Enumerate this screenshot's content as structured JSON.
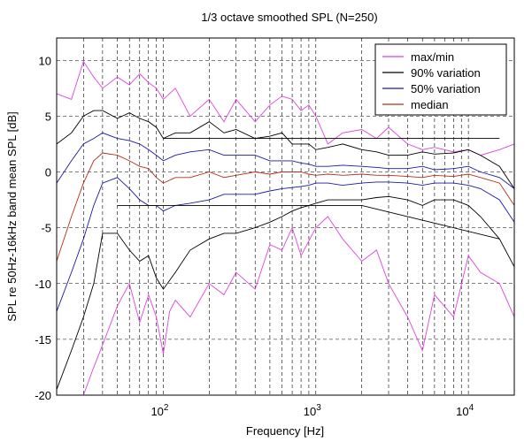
{
  "chart_data": {
    "type": "line",
    "title": "1/3 octave smoothed SPL (N=250)",
    "xlabel": "Frequency [Hz]",
    "ylabel": "SPL re 50Hz-16kHz band mean SPL [dB]",
    "x_scale": "log",
    "xlim": [
      20,
      20000
    ],
    "ylim": [
      -20,
      12
    ],
    "x_ticks": [
      {
        "value": 100,
        "base": "10",
        "exp": "2"
      },
      {
        "value": 1000,
        "base": "10",
        "exp": "3"
      },
      {
        "value": 10000,
        "base": "10",
        "exp": "4"
      }
    ],
    "y_ticks": [
      10,
      5,
      0,
      -5,
      -10,
      -15,
      -20
    ],
    "grid": true,
    "legend": {
      "position": "top-right",
      "entries": [
        {
          "name": "max/min",
          "color": "#dd44dd"
        },
        {
          "name": "90% variation",
          "color": "#000000"
        },
        {
          "name": "50% variation",
          "color": "#1a1aa6"
        },
        {
          "name": "median",
          "color": "#b0301c"
        }
      ]
    },
    "series": [
      {
        "name": "max/min",
        "color": "#dd44dd",
        "x": [
          20,
          25,
          30,
          35,
          40,
          50,
          60,
          70,
          80,
          90,
          100,
          120,
          150,
          200,
          250,
          300,
          400,
          500,
          600,
          700,
          800,
          900,
          1000,
          1200,
          1500,
          2000,
          2500,
          3000,
          4000,
          5000,
          6000,
          8000,
          10000,
          12000,
          16000,
          20000
        ],
        "y": [
          7,
          6.5,
          9.9,
          8.5,
          7.5,
          8.5,
          7.8,
          8.8,
          8.0,
          7.5,
          6.5,
          7.5,
          5.0,
          6.5,
          4.5,
          6.5,
          4.5,
          6.0,
          6.8,
          6.5,
          5.5,
          6.0,
          5.0,
          2.5,
          3.5,
          3.8,
          3.0,
          4.0,
          2.5,
          2.0,
          2.2,
          1.8,
          2.0,
          1.5,
          2.0,
          2.5
        ]
      },
      {
        "name": "max/min",
        "color": "#dd44dd",
        "x": [
          30,
          35,
          40,
          50,
          60,
          70,
          80,
          90,
          100,
          110,
          120,
          150,
          200,
          250,
          300,
          400,
          500,
          600,
          700,
          800,
          1000,
          1200,
          1500,
          2000,
          2500,
          3000,
          4000,
          5000,
          6000,
          8000,
          10000,
          12000,
          16000,
          20000
        ],
        "y": [
          -20,
          -17.5,
          -15.5,
          -12.0,
          -10.0,
          -13.5,
          -11.0,
          -13.0,
          -16.3,
          -12.5,
          -11.5,
          -13.0,
          -10.0,
          -11.0,
          -9.0,
          -10.5,
          -6.5,
          -7.0,
          -5.0,
          -7.5,
          -5.0,
          -4.0,
          -6.0,
          -8.0,
          -7.0,
          -10.0,
          -13.0,
          -16.0,
          -11.0,
          -13.0,
          -7.5,
          -9.0,
          -10.0,
          -13.0
        ]
      },
      {
        "name": "90% variation",
        "color": "#000000",
        "x": [
          20,
          25,
          30,
          35,
          40,
          50,
          60,
          70,
          80,
          90,
          100,
          120,
          150,
          200,
          250,
          300,
          400,
          500,
          600,
          700,
          800,
          900,
          1000,
          1200,
          1500,
          2000,
          2500,
          3000,
          4000,
          5000,
          6000,
          8000,
          10000,
          12000,
          16000,
          20000
        ],
        "y": [
          2.5,
          3.5,
          5.0,
          5.5,
          5.5,
          4.8,
          5.3,
          4.8,
          4.5,
          4.0,
          3.0,
          3.5,
          3.5,
          4.5,
          3.5,
          3.8,
          3.0,
          3.2,
          3.5,
          2.5,
          2.5,
          2.5,
          2.0,
          2.2,
          2.5,
          2.0,
          1.8,
          1.5,
          1.5,
          1.8,
          1.6,
          1.7,
          2.0,
          1.5,
          0.5,
          -1.5
        ]
      },
      {
        "name": "90% variation",
        "color": "#000000",
        "x": [
          20,
          25,
          30,
          35,
          40,
          50,
          60,
          70,
          80,
          90,
          100,
          120,
          150,
          200,
          250,
          300,
          400,
          500,
          600,
          700,
          800,
          900,
          1000,
          1200,
          1500,
          2000,
          2500,
          3000,
          4000,
          5000,
          6000,
          8000,
          10000,
          12000,
          16000,
          20000
        ],
        "y": [
          -19.5,
          -16.0,
          -13.0,
          -10.0,
          -5.5,
          -5.5,
          -7.0,
          -8.0,
          -7.5,
          -9.5,
          -10.5,
          -9.0,
          -7.0,
          -6.0,
          -5.5,
          -5.5,
          -5.0,
          -4.5,
          -4.0,
          -3.5,
          -3.2,
          -3.0,
          -2.8,
          -2.5,
          -2.5,
          -2.5,
          -2.3,
          -2.2,
          -2.5,
          -3.0,
          -2.5,
          -2.5,
          -3.0,
          -4.0,
          -6.0,
          -8.5
        ]
      },
      {
        "name": "50% variation",
        "color": "#1a1aa6",
        "x": [
          20,
          25,
          30,
          35,
          40,
          50,
          60,
          70,
          80,
          90,
          100,
          120,
          150,
          200,
          250,
          300,
          400,
          500,
          600,
          700,
          800,
          900,
          1000,
          1200,
          1500,
          2000,
          2500,
          3000,
          4000,
          5000,
          6000,
          8000,
          10000,
          12000,
          16000,
          20000
        ],
        "y": [
          -1.0,
          1.0,
          2.5,
          3.0,
          3.5,
          3.0,
          2.8,
          2.5,
          2.0,
          1.5,
          1.0,
          1.5,
          1.8,
          2.0,
          1.5,
          1.5,
          1.5,
          1.0,
          1.0,
          1.0,
          0.8,
          0.7,
          0.5,
          0.5,
          0.6,
          0.5,
          0.4,
          0.3,
          0.3,
          0.5,
          0.2,
          0.3,
          0.5,
          0.0,
          -0.5,
          -1.5
        ]
      },
      {
        "name": "50% variation",
        "color": "#1a1aa6",
        "x": [
          20,
          25,
          30,
          35,
          40,
          50,
          60,
          70,
          80,
          90,
          100,
          120,
          150,
          200,
          250,
          300,
          400,
          500,
          600,
          700,
          800,
          900,
          1000,
          1200,
          1500,
          2000,
          2500,
          3000,
          4000,
          5000,
          6000,
          8000,
          10000,
          12000,
          16000,
          20000
        ],
        "y": [
          -12.5,
          -9.0,
          -6.0,
          -3.0,
          -1.0,
          -0.5,
          -1.5,
          -2.5,
          -3.0,
          -3.0,
          -3.5,
          -3.0,
          -2.8,
          -2.5,
          -2.0,
          -2.0,
          -2.0,
          -1.7,
          -1.5,
          -1.4,
          -1.3,
          -1.2,
          -1.0,
          -1.0,
          -1.2,
          -1.0,
          -0.9,
          -0.9,
          -1.0,
          -1.2,
          -1.0,
          -1.0,
          -1.2,
          -1.5,
          -2.5,
          -4.5
        ]
      },
      {
        "name": "median",
        "color": "#b0301c",
        "x": [
          20,
          25,
          30,
          35,
          40,
          50,
          60,
          70,
          80,
          90,
          100,
          120,
          150,
          200,
          250,
          300,
          400,
          500,
          600,
          700,
          800,
          900,
          1000,
          1200,
          1500,
          2000,
          2500,
          3000,
          4000,
          5000,
          6000,
          8000,
          10000,
          12000,
          16000,
          20000
        ],
        "y": [
          -8.0,
          -4.0,
          -1.0,
          1.0,
          1.7,
          1.5,
          1.0,
          0.5,
          0.3,
          -0.5,
          -1.0,
          -0.5,
          -0.5,
          0.0,
          -0.5,
          -0.3,
          0.0,
          -0.2,
          0.0,
          0.0,
          0.0,
          -0.2,
          -0.3,
          -0.2,
          -0.3,
          -0.2,
          -0.3,
          -0.3,
          -0.4,
          -0.5,
          -0.3,
          -0.4,
          -0.2,
          -0.5,
          -1.0,
          -3.0
        ]
      }
    ],
    "envelope_lines": [
      {
        "x": [
          100,
          16000
        ],
        "y": [
          3,
          3
        ]
      },
      {
        "x": [
          50,
          2000,
          16000
        ],
        "y": [
          -3,
          -3,
          -6
        ]
      }
    ]
  }
}
